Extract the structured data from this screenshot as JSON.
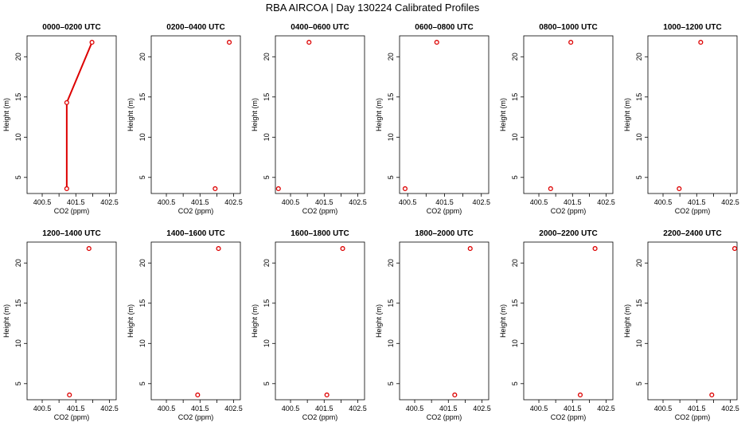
{
  "title": "RBA AIRCOA |  Day 130224  Calibrated Profiles",
  "chart_data": {
    "type": "line",
    "xlabel": "CO2 (ppm)",
    "ylabel": "Height (m)",
    "x_ticks": [
      400.5,
      401.5,
      402.5
    ],
    "x_minor_ticks": [
      401.0,
      402.0
    ],
    "y_ticks": [
      5,
      10,
      15,
      20
    ],
    "ylim": [
      3.0,
      22.6
    ],
    "point_color": "#dd0000",
    "line_color": "#dd0000",
    "panels": [
      {
        "title": "0000–0200 UTC",
        "xlim": [
          400.05,
          402.7
        ],
        "points": [
          {
            "x": 401.23,
            "y": 3.6
          },
          {
            "x": 401.23,
            "y": 14.3
          },
          {
            "x": 401.98,
            "y": 21.8
          }
        ],
        "connected": true
      },
      {
        "title": "0200–0400 UTC",
        "xlim": [
          400.05,
          402.7
        ],
        "points": [
          {
            "x": 401.95,
            "y": 3.6
          },
          {
            "x": 402.37,
            "y": 21.8
          }
        ],
        "connected": false
      },
      {
        "title": "0400–0600 UTC",
        "xlim": [
          400.05,
          402.7
        ],
        "points": [
          {
            "x": 400.14,
            "y": 3.6
          },
          {
            "x": 401.05,
            "y": 21.8
          }
        ],
        "connected": false
      },
      {
        "title": "0600–0800 UTC",
        "xlim": [
          400.28,
          402.7
        ],
        "points": [
          {
            "x": 400.43,
            "y": 3.6
          },
          {
            "x": 401.29,
            "y": 21.8
          }
        ],
        "connected": false
      },
      {
        "title": "0800–1000 UTC",
        "xlim": [
          400.05,
          402.7
        ],
        "points": [
          {
            "x": 400.85,
            "y": 3.6
          },
          {
            "x": 401.45,
            "y": 21.8
          }
        ],
        "connected": false
      },
      {
        "title": "1000–1200 UTC",
        "xlim": [
          400.05,
          402.7
        ],
        "points": [
          {
            "x": 400.98,
            "y": 3.6
          },
          {
            "x": 401.62,
            "y": 21.8
          }
        ],
        "connected": false
      },
      {
        "title": "1200–1400 UTC",
        "xlim": [
          400.05,
          402.7
        ],
        "points": [
          {
            "x": 401.31,
            "y": 3.6
          },
          {
            "x": 401.89,
            "y": 21.8
          }
        ],
        "connected": false
      },
      {
        "title": "1400–1600 UTC",
        "xlim": [
          400.05,
          402.7
        ],
        "points": [
          {
            "x": 401.43,
            "y": 3.6
          },
          {
            "x": 402.05,
            "y": 21.8
          }
        ],
        "connected": false
      },
      {
        "title": "1600–1800 UTC",
        "xlim": [
          400.05,
          402.7
        ],
        "points": [
          {
            "x": 401.58,
            "y": 3.6
          },
          {
            "x": 402.05,
            "y": 21.8
          }
        ],
        "connected": false
      },
      {
        "title": "1800–2000 UTC",
        "xlim": [
          400.05,
          402.7
        ],
        "points": [
          {
            "x": 401.69,
            "y": 3.6
          },
          {
            "x": 402.15,
            "y": 21.8
          }
        ],
        "connected": false
      },
      {
        "title": "2000–2200 UTC",
        "xlim": [
          400.05,
          402.7
        ],
        "points": [
          {
            "x": 401.73,
            "y": 3.6
          },
          {
            "x": 402.17,
            "y": 21.8
          }
        ],
        "connected": false
      },
      {
        "title": "2200–2400 UTC",
        "xlim": [
          400.05,
          402.7
        ],
        "points": [
          {
            "x": 401.95,
            "y": 3.6
          },
          {
            "x": 402.63,
            "y": 21.8
          }
        ],
        "connected": false
      }
    ]
  }
}
